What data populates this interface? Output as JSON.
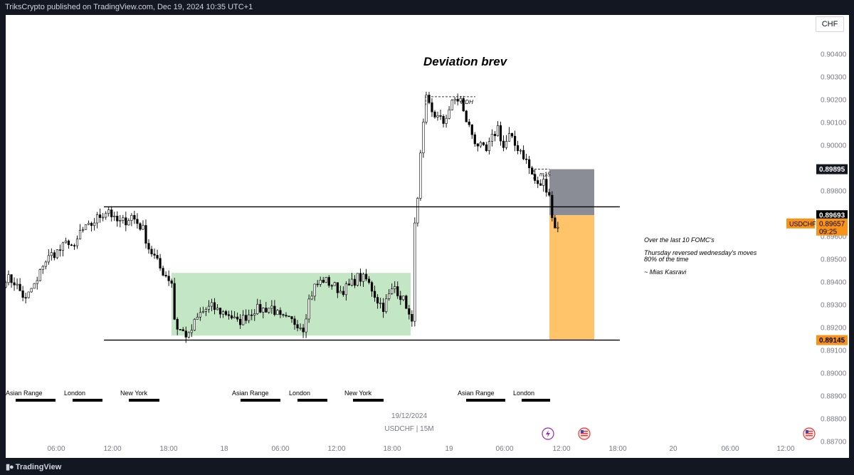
{
  "header": {
    "published": "TriksCrypto published on TradingView.com, Dec 19, 2024 10:35 UTC+1"
  },
  "footer": {
    "brand": "TradingView"
  },
  "currency_button": "CHF",
  "chart_data": {
    "type": "candlestick",
    "symbol": "USDCHF",
    "timeframe": "15M",
    "date_label": "19/12/2024",
    "symbol_label": "USDCHF | 15M",
    "title": "Deviation brev",
    "ylim": [
      0.887,
      0.905
    ],
    "y_ticks": [
      "0.90400",
      "0.90300",
      "0.90200",
      "0.90100",
      "0.90000",
      "0.89900",
      "0.89800",
      "0.89700",
      "0.89600",
      "0.89500",
      "0.89400",
      "0.89300",
      "0.89200",
      "0.89100",
      "0.89000",
      "0.88900",
      "0.88800",
      "0.88700"
    ],
    "x_ticks": [
      "06:00",
      "12:00",
      "18:00",
      "18",
      "06:00",
      "12:00",
      "18:00",
      "19",
      "06:00",
      "12:00",
      "18:00",
      "20",
      "06:00",
      "12:00"
    ],
    "price_labels": {
      "stop": "0.89895",
      "marker": "0.89693",
      "symbol_tag": "USDCHF",
      "last": "0.89657",
      "countdown": "09:25",
      "target": "0.89145"
    },
    "levels": {
      "upper_line": 0.8973,
      "lower_line": 0.89145,
      "green_box_top": 0.8944,
      "green_box_bottom": 0.89165,
      "pdh": 0.90213,
      "m15_high": 0.89895
    },
    "position": {
      "entry": 0.89693,
      "stop": 0.89895,
      "target": 0.89145
    },
    "annotations": {
      "pdh": "PDH",
      "m15": "m15",
      "note_line1": "Over the last 10 FOMC's",
      "note_line2": "Thursday reversed wednesday's moves",
      "note_line3": "80% of the time",
      "note_line4": "~ Mias Kasravi"
    },
    "sessions": [
      {
        "label": "Asian Range"
      },
      {
        "label": "London"
      },
      {
        "label": "New York"
      },
      {
        "label": "Asian Range"
      },
      {
        "label": "London"
      },
      {
        "label": "New York"
      },
      {
        "label": "Asian Range"
      },
      {
        "label": "London"
      }
    ],
    "path": [
      [
        0,
        0.8942
      ],
      [
        3,
        0.894
      ],
      [
        5,
        0.8936
      ],
      [
        7,
        0.8932
      ],
      [
        9,
        0.8937
      ],
      [
        11,
        0.894
      ],
      [
        13,
        0.8948
      ],
      [
        16,
        0.8952
      ],
      [
        19,
        0.8954
      ],
      [
        22,
        0.8958
      ],
      [
        24,
        0.8954
      ],
      [
        26,
        0.8962
      ],
      [
        29,
        0.8964
      ],
      [
        32,
        0.8968
      ],
      [
        34,
        0.897
      ],
      [
        36,
        0.8972
      ],
      [
        38,
        0.8967
      ],
      [
        40,
        0.8966
      ],
      [
        42,
        0.8967
      ],
      [
        44,
        0.8969
      ],
      [
        46,
        0.8966
      ],
      [
        48,
        0.8963
      ],
      [
        50,
        0.8955
      ],
      [
        52,
        0.8951
      ],
      [
        54,
        0.8946
      ],
      [
        56,
        0.8943
      ],
      [
        58,
        0.894
      ],
      [
        59,
        0.8924
      ],
      [
        60,
        0.892
      ],
      [
        62,
        0.8918
      ],
      [
        64,
        0.8916
      ],
      [
        66,
        0.8922
      ],
      [
        68,
        0.8926
      ],
      [
        70,
        0.8928
      ],
      [
        72,
        0.8929
      ],
      [
        75,
        0.8927
      ],
      [
        78,
        0.8926
      ],
      [
        81,
        0.8922
      ],
      [
        84,
        0.8925
      ],
      [
        87,
        0.8928
      ],
      [
        90,
        0.8928
      ],
      [
        93,
        0.8929
      ],
      [
        96,
        0.8924
      ],
      [
        99,
        0.8923
      ],
      [
        102,
        0.8922
      ],
      [
        104,
        0.892
      ],
      [
        106,
        0.8932
      ],
      [
        108,
        0.8938
      ],
      [
        111,
        0.8941
      ],
      [
        114,
        0.8939
      ],
      [
        117,
        0.8936
      ],
      [
        120,
        0.8938
      ],
      [
        123,
        0.8942
      ],
      [
        126,
        0.8941
      ],
      [
        128,
        0.8937
      ],
      [
        130,
        0.8932
      ],
      [
        132,
        0.8929
      ],
      [
        134,
        0.8934
      ],
      [
        136,
        0.8938
      ],
      [
        138,
        0.8934
      ],
      [
        140,
        0.893
      ],
      [
        141,
        0.8925
      ],
      [
        142,
        0.8921
      ],
      [
        143,
        0.8968
      ],
      [
        144,
        0.8975
      ],
      [
        145,
        0.8995
      ],
      [
        146,
        0.9008
      ],
      [
        147,
        0.902
      ],
      [
        149,
        0.9015
      ],
      [
        151,
        0.9012
      ],
      [
        153,
        0.901
      ],
      [
        155,
        0.9016
      ],
      [
        157,
        0.902
      ],
      [
        159,
        0.902
      ],
      [
        160,
        0.9014
      ],
      [
        162,
        0.9008
      ],
      [
        164,
        0.9002
      ],
      [
        166,
        0.8999
      ],
      [
        168,
        0.8997
      ],
      [
        170,
        0.9003
      ],
      [
        172,
        0.9008
      ],
      [
        174,
        0.8999
      ],
      [
        176,
        0.9004
      ],
      [
        178,
        0.9
      ],
      [
        180,
        0.8998
      ],
      [
        182,
        0.8993
      ],
      [
        184,
        0.8987
      ],
      [
        186,
        0.8982
      ],
      [
        188,
        0.8984
      ],
      [
        190,
        0.8979
      ],
      [
        191,
        0.8968
      ],
      [
        192,
        0.8965
      ],
      [
        193,
        0.8963
      ]
    ]
  }
}
